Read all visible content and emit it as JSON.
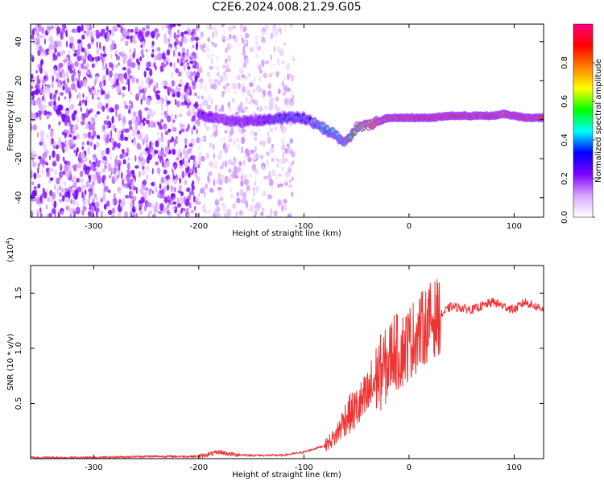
{
  "title": "C2E6.2024.008.21.29.G05",
  "chart_data": [
    {
      "type": "heatmap",
      "title": "C2E6.2024.008.21.29.G05",
      "xlabel": "Height of straight line (km)",
      "ylabel": "Frequency (Hz)",
      "xlim": [
        -360,
        128
      ],
      "ylim": [
        -50,
        49
      ],
      "xticks": [
        -300,
        -200,
        -100,
        0,
        100
      ],
      "yticks": [
        -40,
        -20,
        0,
        20,
        40
      ],
      "colorbar": {
        "label": "Normalized spectral amplitude",
        "range": [
          0.0,
          1.0
        ],
        "ticks": [
          "0.0",
          "0.2",
          "0.4",
          "0.6",
          "0.8"
        ],
        "tick_values": [
          0.0,
          0.2,
          0.4,
          0.6,
          0.8
        ],
        "colors": [
          "#ffffff",
          "#d8a8ff",
          "#8000ff",
          "#0000ff",
          "#00ffff",
          "#00ff00",
          "#ffff00",
          "#ff8000",
          "#ff0000",
          "#ff0080"
        ]
      },
      "signal_track": {
        "x": [
          -200,
          -180,
          -160,
          -140,
          -120,
          -100,
          -90,
          -80,
          -70,
          -60,
          -50,
          -40,
          -30,
          -20,
          -10,
          0,
          20,
          40,
          60,
          80,
          90,
          100,
          110,
          128
        ],
        "freq_hz": [
          3,
          0,
          -1,
          0,
          1,
          1,
          -2,
          -5,
          -8,
          -12,
          -4,
          -3,
          -1,
          1,
          1,
          1,
          1,
          2,
          2,
          2,
          3,
          2,
          1,
          1
        ],
        "amplitude": [
          0.25,
          0.2,
          0.2,
          0.25,
          0.35,
          0.35,
          0.4,
          0.45,
          0.45,
          0.5,
          0.6,
          0.7,
          0.75,
          0.8,
          0.85,
          0.85,
          0.85,
          0.85,
          0.85,
          0.85,
          0.8,
          0.85,
          0.85,
          0.85
        ]
      },
      "noise_regions": [
        {
          "x_from": -360,
          "x_to": -200,
          "density": "high"
        },
        {
          "x_from": -200,
          "x_to": -110,
          "density": "medium"
        }
      ]
    },
    {
      "type": "line",
      "xlabel": "Height of straight line (km)",
      "ylabel": "SNR (10 * v/v)",
      "y_multiplier": "(x10",
      "y_multiplier_exponent": "4",
      "y_multiplier_close": ")",
      "xlim": [
        -360,
        128
      ],
      "ylim": [
        0,
        1.75
      ],
      "xticks": [
        -300,
        -200,
        -100,
        0,
        100
      ],
      "yticks": [
        "0.5",
        "1.0",
        "1.5"
      ],
      "ytick_values": [
        0.5,
        1.0,
        1.5
      ],
      "color": "#ee3333",
      "series": [
        {
          "name": "SNR",
          "x": [
            -360,
            -300,
            -250,
            -200,
            -180,
            -170,
            -150,
            -120,
            -100,
            -80,
            -70,
            -60,
            -50,
            -40,
            -35,
            -30,
            -20,
            -15,
            -10,
            0,
            10,
            20,
            30,
            40,
            60,
            80,
            90,
            100,
            110,
            120,
            128
          ],
          "y": [
            0.01,
            0.01,
            0.02,
            0.02,
            0.06,
            0.04,
            0.03,
            0.03,
            0.06,
            0.12,
            0.2,
            0.38,
            0.45,
            0.55,
            0.65,
            0.75,
            0.85,
            1.0,
            0.95,
            1.05,
            1.15,
            1.25,
            1.3,
            1.38,
            1.35,
            1.42,
            1.38,
            1.35,
            1.42,
            1.38,
            1.36
          ]
        }
      ]
    }
  ]
}
